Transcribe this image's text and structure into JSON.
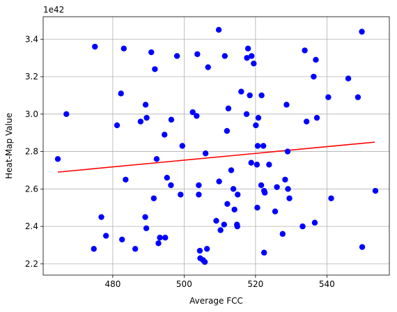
{
  "chart_data": {
    "type": "scatter",
    "title": "",
    "xlabel": "Average FCC",
    "ylabel": "Heat-Map Value",
    "y_offset_label": "1e42",
    "y_multiplier": 1e+42,
    "xlim": [
      460.5,
      557.5
    ],
    "ylim": [
      2.14,
      3.52
    ],
    "x_ticks": [
      480,
      500,
      520,
      540
    ],
    "x_tick_labels": [
      "480",
      "500",
      "520",
      "540"
    ],
    "y_ticks": [
      2.2,
      2.4,
      2.6,
      2.8,
      3.0,
      3.2,
      3.4
    ],
    "y_tick_labels": [
      "2.2",
      "2.4",
      "2.6",
      "2.8",
      "3.0",
      "3.2",
      "3.4"
    ],
    "grid": true,
    "point_color": "#0000ff",
    "line_color": "#ff0000",
    "trendline": {
      "x": [
        464.6,
        553.4
      ],
      "y": [
        2.69,
        2.85
      ]
    },
    "points": [
      [
        464.6,
        2.76
      ],
      [
        467.0,
        3.0
      ],
      [
        474.7,
        2.28
      ],
      [
        475.0,
        3.36
      ],
      [
        476.8,
        2.45
      ],
      [
        478.1,
        2.35
      ],
      [
        481.2,
        2.94
      ],
      [
        482.3,
        3.11
      ],
      [
        482.6,
        2.33
      ],
      [
        483.1,
        3.35
      ],
      [
        483.6,
        2.65
      ],
      [
        486.3,
        2.28
      ],
      [
        487.8,
        2.96
      ],
      [
        489.1,
        2.45
      ],
      [
        489.2,
        3.05
      ],
      [
        489.4,
        2.39
      ],
      [
        489.5,
        2.98
      ],
      [
        490.8,
        3.33
      ],
      [
        491.5,
        2.55
      ],
      [
        491.8,
        3.24
      ],
      [
        492.3,
        2.76
      ],
      [
        492.8,
        2.31
      ],
      [
        493.2,
        2.34
      ],
      [
        494.5,
        2.89
      ],
      [
        494.7,
        2.34
      ],
      [
        495.2,
        2.66
      ],
      [
        496.3,
        2.62
      ],
      [
        496.4,
        2.97
      ],
      [
        498.0,
        3.31
      ],
      [
        499.0,
        2.57
      ],
      [
        499.5,
        2.83
      ],
      [
        502.4,
        3.01
      ],
      [
        503.5,
        2.99
      ],
      [
        503.7,
        3.32
      ],
      [
        504.1,
        2.57
      ],
      [
        504.1,
        2.62
      ],
      [
        504.4,
        2.27
      ],
      [
        504.5,
        2.23
      ],
      [
        505.3,
        2.22
      ],
      [
        505.8,
        2.21
      ],
      [
        506.0,
        2.79
      ],
      [
        506.4,
        2.28
      ],
      [
        506.7,
        3.25
      ],
      [
        509.0,
        2.43
      ],
      [
        509.7,
        3.45
      ],
      [
        509.8,
        2.64
      ],
      [
        510.2,
        2.38
      ],
      [
        511.2,
        2.41
      ],
      [
        511.4,
        3.31
      ],
      [
        512.0,
        2.91
      ],
      [
        512.1,
        2.52
      ],
      [
        512.4,
        3.03
      ],
      [
        513.2,
        2.7
      ],
      [
        513.8,
        2.6
      ],
      [
        514.1,
        2.49
      ],
      [
        514.8,
        2.41
      ],
      [
        514.9,
        2.4
      ],
      [
        515.0,
        2.57
      ],
      [
        516.0,
        3.12
      ],
      [
        517.5,
        3.0
      ],
      [
        517.6,
        3.3
      ],
      [
        517.9,
        3.35
      ],
      [
        518.4,
        3.1
      ],
      [
        518.8,
        2.74
      ],
      [
        518.9,
        3.31
      ],
      [
        519.5,
        3.27
      ],
      [
        520.1,
        2.94
      ],
      [
        520.4,
        2.73
      ],
      [
        520.5,
        2.5
      ],
      [
        520.6,
        2.83
      ],
      [
        520.8,
        2.98
      ],
      [
        521.6,
        2.62
      ],
      [
        521.7,
        3.1
      ],
      [
        522.2,
        2.83
      ],
      [
        522.4,
        2.26
      ],
      [
        522.4,
        2.59
      ],
      [
        522.6,
        2.58
      ],
      [
        523.8,
        2.73
      ],
      [
        525.5,
        2.48
      ],
      [
        526.0,
        2.61
      ],
      [
        527.6,
        2.36
      ],
      [
        528.3,
        2.65
      ],
      [
        528.7,
        3.05
      ],
      [
        529.0,
        2.8
      ],
      [
        529.1,
        2.6
      ],
      [
        529.5,
        2.55
      ],
      [
        533.2,
        2.4
      ],
      [
        533.8,
        3.34
      ],
      [
        534.3,
        2.96
      ],
      [
        536.3,
        3.2
      ],
      [
        536.6,
        2.42
      ],
      [
        536.9,
        3.29
      ],
      [
        537.2,
        2.98
      ],
      [
        540.4,
        3.09
      ],
      [
        541.2,
        2.55
      ],
      [
        546.0,
        3.19
      ],
      [
        548.7,
        3.09
      ],
      [
        549.8,
        3.44
      ],
      [
        549.9,
        2.29
      ],
      [
        553.6,
        2.59
      ]
    ]
  }
}
